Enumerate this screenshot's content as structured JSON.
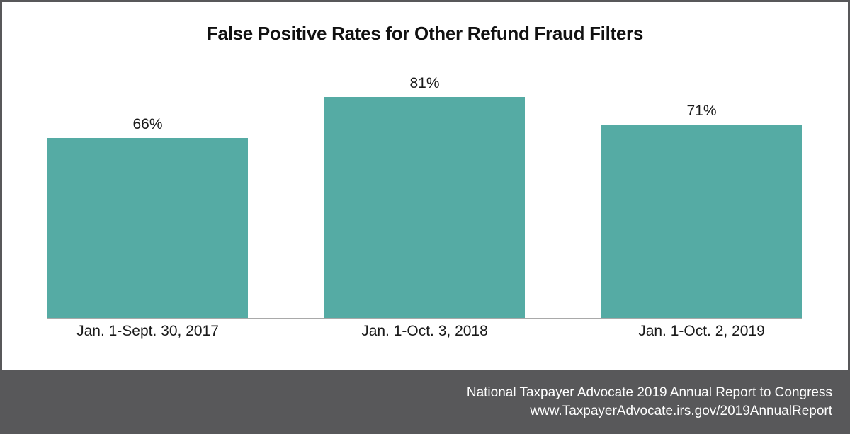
{
  "title": "False Positive Rates for Other Refund Fraud Filters",
  "chart_data": {
    "type": "bar",
    "title": "False Positive Rates for Other Refund Fraud Filters",
    "categories": [
      "Jan. 1-Sept. 30, 2017",
      "Jan. 1-Oct. 3, 2018",
      "Jan. 1-Oct. 2, 2019"
    ],
    "values": [
      66,
      81,
      71
    ],
    "value_labels": [
      "66%",
      "81%",
      "71%"
    ],
    "xlabel": "",
    "ylabel": "",
    "ylim": [
      0,
      100
    ],
    "unit": "%",
    "grid": false,
    "legend": false,
    "bar_color": "#55aba4",
    "baseline_color": "#a9a9a9",
    "data_labels_position": "above-bar"
  },
  "footer": {
    "line1": "National Taxpayer Advocate 2019 Annual Report to Congress",
    "line2": "www.TaxpayerAdvocate.irs.gov/2019AnnualReport",
    "background": "#58585a",
    "text_color": "#ffffff"
  },
  "colors": {
    "bar": "#55aba4",
    "frame_border": "#58585a",
    "baseline": "#a9a9a9",
    "title_text": "#111111",
    "label_text": "#1a1a1a",
    "background": "#ffffff"
  }
}
